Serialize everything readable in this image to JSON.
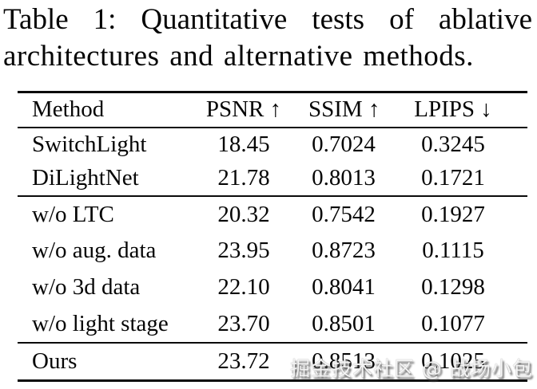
{
  "caption": {
    "line1": "Table 1: Quantitative tests of ablative",
    "line2": "architectures and alternative methods."
  },
  "table": {
    "columns": [
      "Method",
      "PSNR ↑",
      "SSIM ↑",
      "LPIPS ↓"
    ],
    "groups": [
      {
        "rows": [
          {
            "method": "SwitchLight",
            "psnr": "18.45",
            "ssim": "0.7024",
            "lpips": "0.3245"
          },
          {
            "method": "DiLightNet",
            "psnr": "21.78",
            "ssim": "0.8013",
            "lpips": "0.1721"
          }
        ]
      },
      {
        "rows": [
          {
            "method": "w/o LTC",
            "psnr": "20.32",
            "ssim": "0.7542",
            "lpips": "0.1927"
          },
          {
            "method": "w/o aug. data",
            "psnr": "23.95",
            "ssim": "0.8723",
            "lpips": "0.1115"
          },
          {
            "method": "w/o 3d data",
            "psnr": "22.10",
            "ssim": "0.8041",
            "lpips": "0.1298"
          },
          {
            "method": "w/o light stage",
            "psnr": "23.70",
            "ssim": "0.8501",
            "lpips": "0.1077"
          }
        ]
      },
      {
        "rows": [
          {
            "method": "Ours",
            "psnr": "23.72",
            "ssim": "0.8513",
            "lpips": "0.1025"
          }
        ]
      }
    ]
  },
  "watermark": {
    "text": "掘金技术社区 @ 战场小包"
  },
  "colors": {
    "background": "#ffffff",
    "text": "#060606",
    "rule": "#0a0a0a",
    "watermark_fill": "#f4f4f4"
  }
}
